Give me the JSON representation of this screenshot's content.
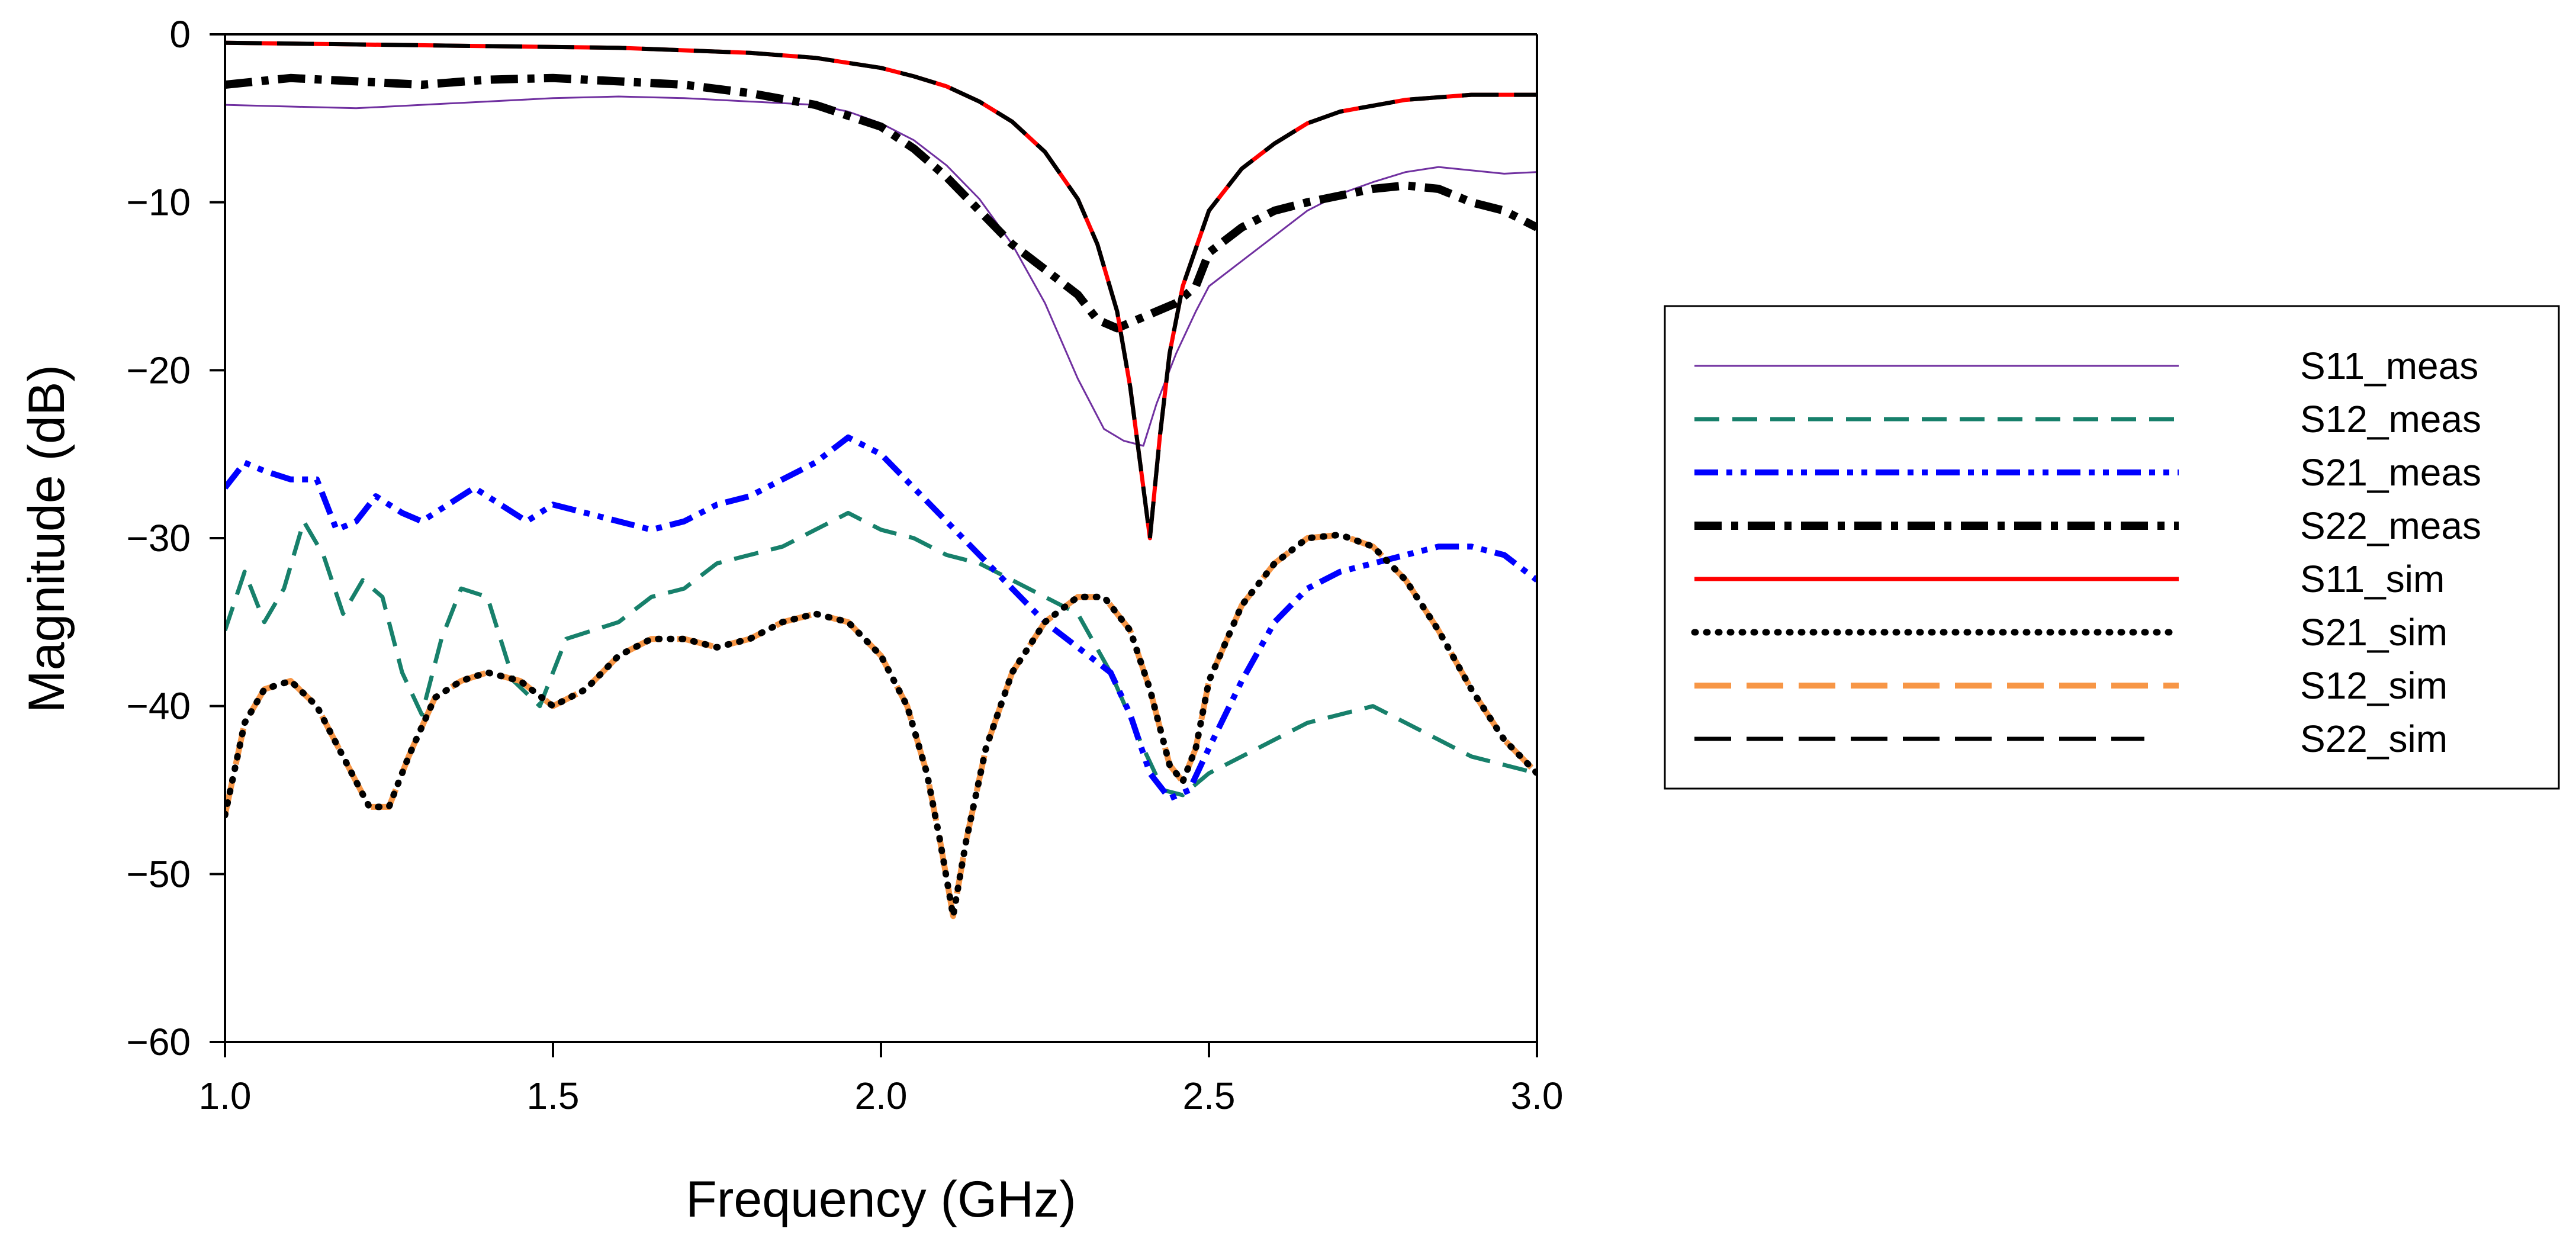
{
  "chart_data": {
    "type": "line",
    "title": "",
    "xlabel": "Frequency (GHz)",
    "ylabel": "Magnitude (dB)",
    "xlim": [
      1.0,
      3.0
    ],
    "ylim": [
      -60,
      0
    ],
    "xticks": [
      1.0,
      1.5,
      2.0,
      2.5,
      3.0
    ],
    "xtick_labels": [
      "1.0",
      "1.5",
      "2.0",
      "2.5",
      "3.0"
    ],
    "yticks": [
      0,
      -10,
      -20,
      -30,
      -40,
      -50,
      -60
    ],
    "ytick_labels": [
      "0",
      "−10",
      "−20",
      "−30",
      "−40",
      "−50",
      "−60"
    ],
    "grid": false,
    "legend_position": "right",
    "series": [
      {
        "name": "S11_meas",
        "color": "#7030a0",
        "style": "solid",
        "weight": "thin",
        "x": [
          1.0,
          1.1,
          1.2,
          1.3,
          1.4,
          1.5,
          1.6,
          1.7,
          1.8,
          1.9,
          1.95,
          2.0,
          2.05,
          2.1,
          2.15,
          2.2,
          2.25,
          2.3,
          2.34,
          2.37,
          2.4,
          2.42,
          2.45,
          2.48,
          2.5,
          2.55,
          2.6,
          2.65,
          2.7,
          2.75,
          2.8,
          2.85,
          2.9,
          2.95,
          3.0
        ],
        "y": [
          -4.2,
          -4.3,
          -4.4,
          -4.2,
          -4.0,
          -3.8,
          -3.7,
          -3.8,
          -4.0,
          -4.2,
          -4.6,
          -5.3,
          -6.3,
          -7.8,
          -9.8,
          -12.5,
          -16.0,
          -20.5,
          -23.5,
          -24.2,
          -24.5,
          -22.0,
          -19.0,
          -16.5,
          -15.0,
          -13.5,
          -12.0,
          -10.5,
          -9.5,
          -8.8,
          -8.2,
          -7.9,
          -8.1,
          -8.3,
          -8.2
        ]
      },
      {
        "name": "S12_meas",
        "color": "#17806b",
        "style": "dash",
        "weight": "medium",
        "x": [
          1.0,
          1.03,
          1.06,
          1.09,
          1.12,
          1.15,
          1.18,
          1.21,
          1.24,
          1.27,
          1.3,
          1.33,
          1.36,
          1.4,
          1.44,
          1.48,
          1.52,
          1.56,
          1.6,
          1.65,
          1.7,
          1.75,
          1.8,
          1.85,
          1.9,
          1.95,
          2.0,
          2.05,
          2.1,
          2.15,
          2.2,
          2.25,
          2.3,
          2.35,
          2.4,
          2.43,
          2.46,
          2.5,
          2.55,
          2.6,
          2.65,
          2.7,
          2.75,
          2.8,
          2.85,
          2.9,
          2.95,
          3.0
        ],
        "y": [
          -35.5,
          -32.0,
          -35.0,
          -33.0,
          -29.0,
          -31.0,
          -34.5,
          -32.5,
          -33.5,
          -38.0,
          -40.5,
          -36.0,
          -33.0,
          -33.5,
          -38.5,
          -40.0,
          -36.0,
          -35.5,
          -35.0,
          -33.5,
          -33.0,
          -31.5,
          -31.0,
          -30.5,
          -29.5,
          -28.5,
          -29.5,
          -30.0,
          -31.0,
          -31.5,
          -32.5,
          -33.5,
          -34.5,
          -38.0,
          -42.5,
          -45.0,
          -45.3,
          -44.0,
          -43.0,
          -42.0,
          -41.0,
          -40.5,
          -40.0,
          -41.0,
          -42.0,
          -43.0,
          -43.5,
          -44.0
        ]
      },
      {
        "name": "S21_meas",
        "color": "#0000ff",
        "style": "dashdotdot",
        "weight": "bold",
        "x": [
          1.0,
          1.03,
          1.06,
          1.1,
          1.14,
          1.17,
          1.2,
          1.23,
          1.27,
          1.3,
          1.34,
          1.38,
          1.42,
          1.46,
          1.5,
          1.55,
          1.6,
          1.65,
          1.7,
          1.75,
          1.8,
          1.85,
          1.9,
          1.95,
          2.0,
          2.05,
          2.1,
          2.15,
          2.2,
          2.25,
          2.3,
          2.35,
          2.38,
          2.41,
          2.44,
          2.47,
          2.5,
          2.55,
          2.6,
          2.65,
          2.7,
          2.75,
          2.8,
          2.85,
          2.9,
          2.95,
          3.0
        ],
        "y": [
          -27.0,
          -25.5,
          -26.0,
          -26.5,
          -26.5,
          -29.5,
          -29.0,
          -27.5,
          -28.5,
          -29.0,
          -28.0,
          -27.0,
          -28.0,
          -29.0,
          -28.0,
          -28.5,
          -29.0,
          -29.5,
          -29.0,
          -28.0,
          -27.5,
          -26.5,
          -25.5,
          -24.0,
          -25.0,
          -27.0,
          -29.0,
          -31.0,
          -33.0,
          -35.0,
          -36.5,
          -38.0,
          -40.5,
          -44.0,
          -45.5,
          -45.0,
          -42.5,
          -38.5,
          -35.0,
          -33.0,
          -32.0,
          -31.5,
          -31.0,
          -30.5,
          -30.5,
          -31.0,
          -32.5
        ]
      },
      {
        "name": "S22_meas",
        "color": "#000000",
        "style": "dashdot",
        "weight": "heavy",
        "x": [
          1.0,
          1.1,
          1.2,
          1.3,
          1.4,
          1.5,
          1.6,
          1.7,
          1.8,
          1.9,
          2.0,
          2.05,
          2.1,
          2.15,
          2.2,
          2.25,
          2.3,
          2.33,
          2.36,
          2.39,
          2.42,
          2.45,
          2.48,
          2.5,
          2.55,
          2.6,
          2.65,
          2.7,
          2.75,
          2.8,
          2.85,
          2.9,
          2.95,
          3.0
        ],
        "y": [
          -3.0,
          -2.6,
          -2.8,
          -3.0,
          -2.7,
          -2.6,
          -2.8,
          -3.0,
          -3.5,
          -4.2,
          -5.5,
          -6.8,
          -8.5,
          -10.5,
          -12.5,
          -14.0,
          -15.5,
          -17.0,
          -17.5,
          -17.0,
          -16.5,
          -16.0,
          -15.0,
          -13.0,
          -11.5,
          -10.5,
          -10.0,
          -9.6,
          -9.2,
          -9.0,
          -9.2,
          -10.0,
          -10.5,
          -11.5
        ]
      },
      {
        "name": "S11_sim",
        "color": "#ff0000",
        "style": "solid",
        "weight": "medium",
        "x": [
          1.0,
          1.2,
          1.4,
          1.6,
          1.8,
          1.9,
          2.0,
          2.05,
          2.1,
          2.15,
          2.2,
          2.25,
          2.3,
          2.33,
          2.36,
          2.38,
          2.395,
          2.41,
          2.425,
          2.44,
          2.46,
          2.5,
          2.55,
          2.6,
          2.65,
          2.7,
          2.8,
          2.9,
          3.0
        ],
        "y": [
          -0.5,
          -0.6,
          -0.7,
          -0.8,
          -1.1,
          -1.4,
          -2.0,
          -2.5,
          -3.1,
          -4.0,
          -5.2,
          -7.0,
          -9.8,
          -12.5,
          -16.5,
          -21.0,
          -25.5,
          -30.0,
          -24.0,
          -19.0,
          -15.0,
          -10.5,
          -8.0,
          -6.5,
          -5.3,
          -4.6,
          -3.9,
          -3.6,
          -3.6
        ]
      },
      {
        "name": "S21_sim",
        "color": "#000000",
        "style": "dot",
        "weight": "bold",
        "x": [
          1.0,
          1.03,
          1.06,
          1.1,
          1.14,
          1.18,
          1.22,
          1.25,
          1.28,
          1.32,
          1.36,
          1.4,
          1.45,
          1.5,
          1.55,
          1.6,
          1.65,
          1.7,
          1.75,
          1.8,
          1.85,
          1.9,
          1.95,
          2.0,
          2.04,
          2.07,
          2.09,
          2.11,
          2.13,
          2.16,
          2.2,
          2.25,
          2.3,
          2.34,
          2.38,
          2.41,
          2.44,
          2.46,
          2.48,
          2.5,
          2.55,
          2.6,
          2.65,
          2.7,
          2.75,
          2.8,
          2.85,
          2.9,
          2.95,
          3.0
        ],
        "y": [
          -46.5,
          -41.0,
          -39.0,
          -38.5,
          -40.0,
          -43.0,
          -46.0,
          -46.0,
          -43.0,
          -39.5,
          -38.5,
          -38.0,
          -38.5,
          -40.0,
          -39.0,
          -37.0,
          -36.0,
          -36.0,
          -36.5,
          -36.0,
          -35.0,
          -34.5,
          -35.0,
          -37.0,
          -40.0,
          -44.0,
          -48.0,
          -52.5,
          -48.0,
          -42.5,
          -38.0,
          -35.0,
          -33.5,
          -33.5,
          -35.5,
          -39.0,
          -43.5,
          -44.5,
          -42.5,
          -38.5,
          -34.0,
          -31.5,
          -30.0,
          -29.8,
          -30.5,
          -32.5,
          -35.5,
          -39.0,
          -42.0,
          -44.0
        ]
      },
      {
        "name": "S12_sim",
        "color": "#f79646",
        "style": "longdash",
        "weight": "bold",
        "x": [
          1.0,
          1.03,
          1.06,
          1.1,
          1.14,
          1.18,
          1.22,
          1.25,
          1.28,
          1.32,
          1.36,
          1.4,
          1.45,
          1.5,
          1.55,
          1.6,
          1.65,
          1.7,
          1.75,
          1.8,
          1.85,
          1.9,
          1.95,
          2.0,
          2.04,
          2.07,
          2.09,
          2.11,
          2.13,
          2.16,
          2.2,
          2.25,
          2.3,
          2.34,
          2.38,
          2.41,
          2.44,
          2.46,
          2.48,
          2.5,
          2.55,
          2.6,
          2.65,
          2.7,
          2.75,
          2.8,
          2.85,
          2.9,
          2.95,
          3.0
        ],
        "y": [
          -46.5,
          -41.0,
          -39.0,
          -38.5,
          -40.0,
          -43.0,
          -46.0,
          -46.0,
          -43.0,
          -39.5,
          -38.5,
          -38.0,
          -38.5,
          -40.0,
          -39.0,
          -37.0,
          -36.0,
          -36.0,
          -36.5,
          -36.0,
          -35.0,
          -34.5,
          -35.0,
          -37.0,
          -40.0,
          -44.0,
          -48.0,
          -52.5,
          -48.0,
          -42.5,
          -38.0,
          -35.0,
          -33.5,
          -33.5,
          -35.5,
          -39.0,
          -43.5,
          -44.5,
          -42.5,
          -38.5,
          -34.0,
          -31.5,
          -30.0,
          -29.8,
          -30.5,
          -32.5,
          -35.5,
          -39.0,
          -42.0,
          -44.0
        ]
      },
      {
        "name": "S22_sim",
        "color": "#000000",
        "style": "longdash",
        "weight": "medium",
        "x": [
          1.0,
          1.2,
          1.4,
          1.6,
          1.8,
          1.9,
          2.0,
          2.05,
          2.1,
          2.15,
          2.2,
          2.25,
          2.3,
          2.33,
          2.36,
          2.38,
          2.395,
          2.41,
          2.425,
          2.44,
          2.46,
          2.5,
          2.55,
          2.6,
          2.65,
          2.7,
          2.8,
          2.9,
          3.0
        ],
        "y": [
          -0.5,
          -0.6,
          -0.7,
          -0.8,
          -1.1,
          -1.4,
          -2.0,
          -2.5,
          -3.1,
          -4.0,
          -5.2,
          -7.0,
          -9.8,
          -12.5,
          -16.5,
          -21.0,
          -25.5,
          -30.0,
          -24.0,
          -19.0,
          -15.0,
          -10.5,
          -8.0,
          -6.5,
          -5.3,
          -4.6,
          -3.9,
          -3.6,
          -3.6
        ]
      }
    ]
  }
}
